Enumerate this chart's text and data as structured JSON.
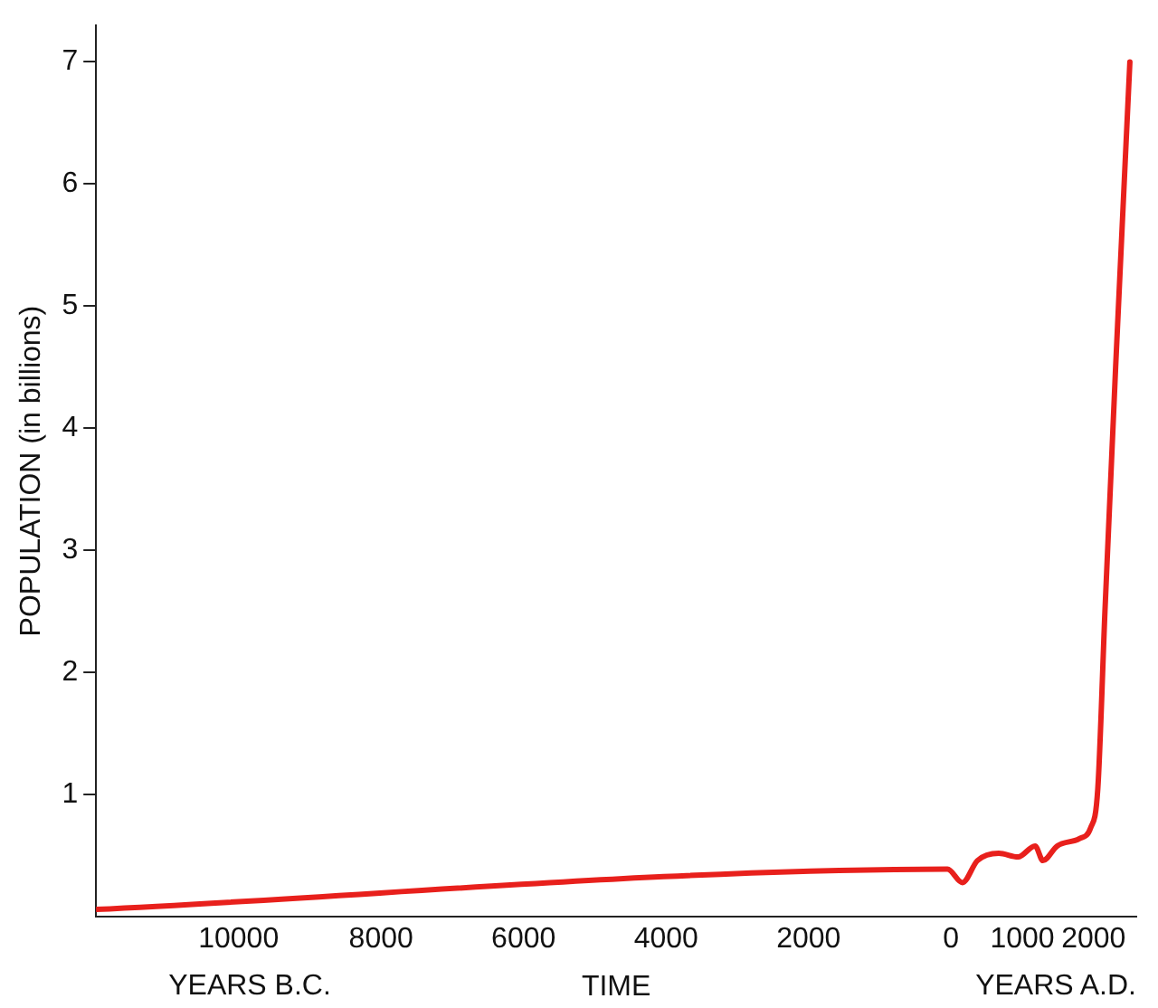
{
  "chart_data": {
    "type": "line",
    "xlabel": "TIME",
    "ylabel": "POPULATION (in billions)",
    "annotations": [
      "YEARS B.C.",
      "YEARS A.D."
    ],
    "x": [
      -12000,
      -50,
      160,
      370,
      670,
      940,
      1180,
      1290,
      1490,
      1800,
      1960,
      2060,
      2160,
      2310,
      2510
    ],
    "series": [
      {
        "color": "#e8201c",
        "values": [
          0.06,
          0.39,
          0.28,
          0.46,
          0.52,
          0.49,
          0.58,
          0.46,
          0.58,
          0.64,
          0.73,
          1.05,
          2.5,
          4.5,
          7.0
        ]
      }
    ],
    "xlim": [
      -12000,
      2600
    ],
    "xticks": [
      {
        "value": -10000,
        "label": "10000"
      },
      {
        "value": -8000,
        "label": "8000"
      },
      {
        "value": -6000,
        "label": "6000"
      },
      {
        "value": -4000,
        "label": "4000"
      },
      {
        "value": -2000,
        "label": "2000"
      },
      0,
      1000,
      2000
    ],
    "ylim": [
      0,
      7.3
    ],
    "yticks": [
      1,
      2,
      3,
      4,
      5,
      6,
      7
    ],
    "grid": false,
    "legend": false,
    "marker": "none",
    "line_style": "solid"
  }
}
